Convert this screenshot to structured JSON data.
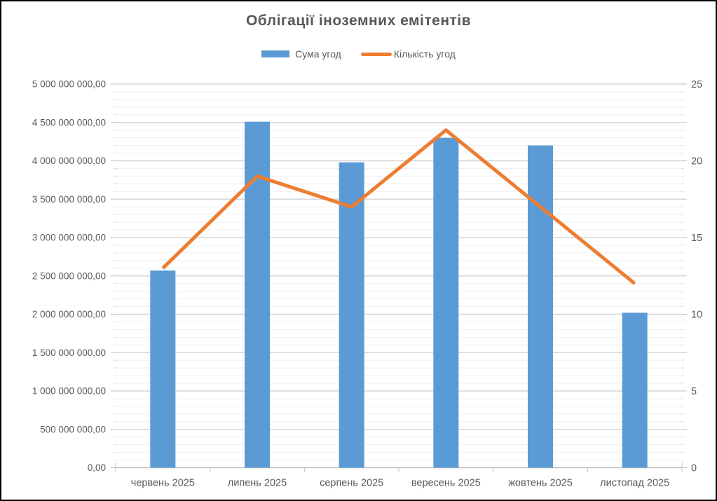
{
  "title": "Облігації іноземних емітентів",
  "legend": [
    {
      "label": "Сума угод",
      "marker": "bar-swatch",
      "color": "#5B9BD5"
    },
    {
      "label": "Кількість угод",
      "marker": "line-swatch",
      "color": "#ED7D31"
    }
  ],
  "colors": {
    "bar": "#5B9BD5",
    "line": "#ED7D31",
    "title_text": "#595959",
    "axis_text": "#595959",
    "major_grid": "#D6D6D6",
    "minor_grid": "#EFEFEF",
    "axis_line": "#BFBFBF"
  },
  "chart_data": {
    "type": "combo",
    "title": "Облігації іноземних емітентів",
    "categories": [
      "червень 2025",
      "липень 2025",
      "серпень 2025",
      "вересень 2025",
      "жовтень 2025",
      "листопад 2025"
    ],
    "series": [
      {
        "name": "Сума угод",
        "type": "bar",
        "axis": "left",
        "color": "#5B9BD5",
        "values": [
          2570000000,
          4510000000,
          3980000000,
          4300000000,
          4200000000,
          2020000000
        ]
      },
      {
        "name": "Кількість угод",
        "type": "line",
        "axis": "right",
        "color": "#ED7D31",
        "values": [
          13,
          19,
          17,
          22,
          17,
          12
        ]
      }
    ],
    "y_left": {
      "min": 0,
      "max": 5000000000,
      "major": 500000000,
      "minor": 100000000,
      "tick_labels": [
        "0,00",
        "500 000 000,00",
        "1 000 000 000,00",
        "1 500 000 000,00",
        "2 000 000 000,00",
        "2 500 000 000,00",
        "3 000 000 000,00",
        "3 500 000 000,00",
        "4 000 000 000,00",
        "4 500 000 000,00",
        "5 000 000 000,00"
      ]
    },
    "y_right": {
      "min": 0,
      "max": 25,
      "major": 5,
      "tick_labels": [
        "0",
        "5",
        "10",
        "15",
        "20",
        "25"
      ]
    },
    "grid": "horizontal major and minor gridlines",
    "legend_position": "top"
  }
}
